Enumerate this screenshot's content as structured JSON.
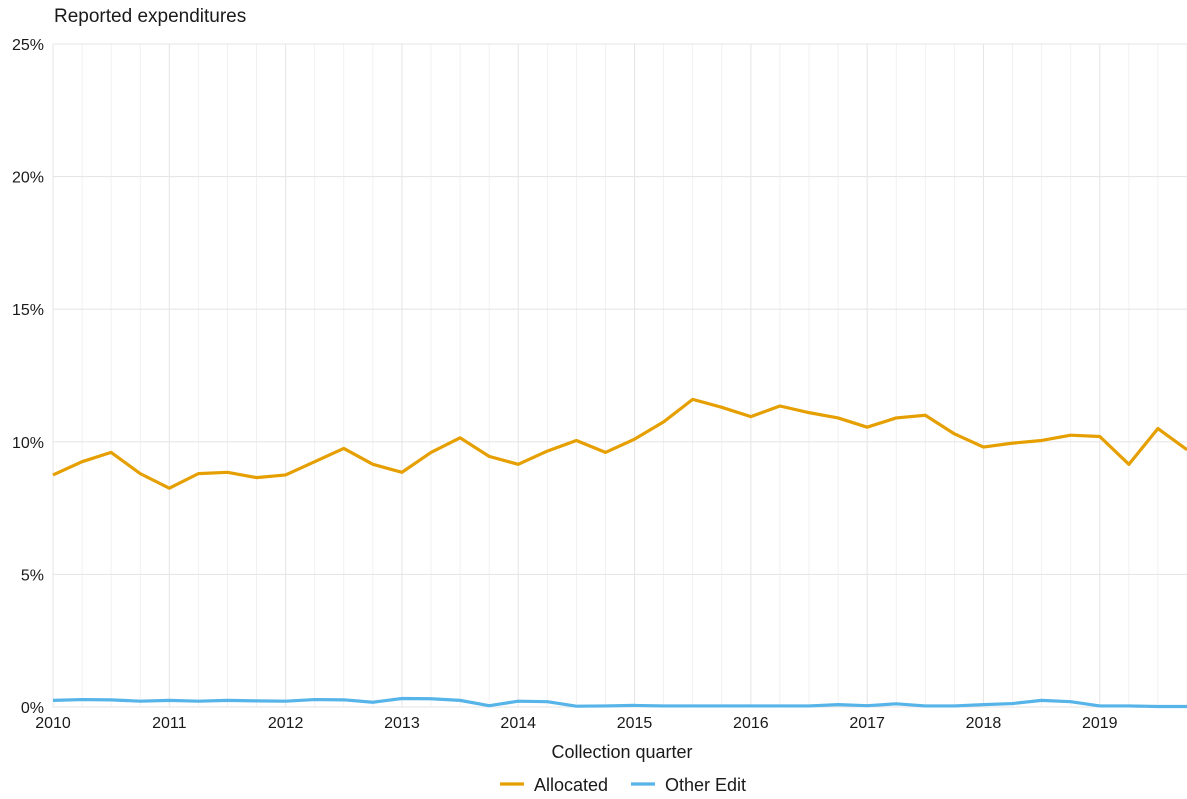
{
  "chart_data": {
    "type": "line",
    "title": "",
    "subtitle": "Reported expenditures",
    "xlabel": "Collection quarter",
    "ylabel": "",
    "x_tick_labels": [
      "2010",
      "2011",
      "2012",
      "2013",
      "2014",
      "2015",
      "2016",
      "2017",
      "2018",
      "2019"
    ],
    "y_tick_labels": [
      "0%",
      "5%",
      "10%",
      "15%",
      "20%",
      "25%"
    ],
    "ylim": [
      0,
      25
    ],
    "y_unit": "%",
    "grid": true,
    "legend_position": "bottom",
    "x": [
      "2010 Q1",
      "2010 Q2",
      "2010 Q3",
      "2010 Q4",
      "2011 Q1",
      "2011 Q2",
      "2011 Q3",
      "2011 Q4",
      "2012 Q1",
      "2012 Q2",
      "2012 Q3",
      "2012 Q4",
      "2013 Q1",
      "2013 Q2",
      "2013 Q3",
      "2013 Q4",
      "2014 Q1",
      "2014 Q2",
      "2014 Q3",
      "2014 Q4",
      "2015 Q1",
      "2015 Q2",
      "2015 Q3",
      "2015 Q4",
      "2016 Q1",
      "2016 Q2",
      "2016 Q3",
      "2016 Q4",
      "2017 Q1",
      "2017 Q2",
      "2017 Q3",
      "2017 Q4",
      "2018 Q1",
      "2018 Q2",
      "2018 Q3",
      "2018 Q4",
      "2019 Q1",
      "2019 Q2",
      "2019 Q3",
      "2019 Q4"
    ],
    "series": [
      {
        "name": "Allocated",
        "color": "#E69F00",
        "values": [
          8.75,
          9.25,
          9.6,
          8.8,
          8.25,
          8.8,
          8.85,
          8.65,
          8.75,
          9.25,
          9.75,
          9.15,
          8.85,
          9.6,
          10.15,
          9.45,
          9.15,
          9.65,
          10.05,
          9.6,
          10.1,
          10.75,
          11.6,
          11.3,
          10.95,
          11.35,
          11.1,
          10.9,
          10.55,
          10.9,
          11.0,
          10.3,
          9.8,
          9.95,
          10.05,
          10.25,
          10.2,
          9.15,
          10.5,
          9.7
        ]
      },
      {
        "name": "Other Edit",
        "color": "#56B4E9",
        "values": [
          0.25,
          0.28,
          0.27,
          0.22,
          0.25,
          0.22,
          0.25,
          0.23,
          0.22,
          0.28,
          0.27,
          0.18,
          0.32,
          0.31,
          0.25,
          0.05,
          0.22,
          0.2,
          0.03,
          0.04,
          0.06,
          0.04,
          0.04,
          0.04,
          0.04,
          0.04,
          0.04,
          0.09,
          0.05,
          0.12,
          0.04,
          0.04,
          0.09,
          0.13,
          0.25,
          0.2,
          0.04,
          0.04,
          0.02,
          0.02
        ]
      }
    ]
  }
}
